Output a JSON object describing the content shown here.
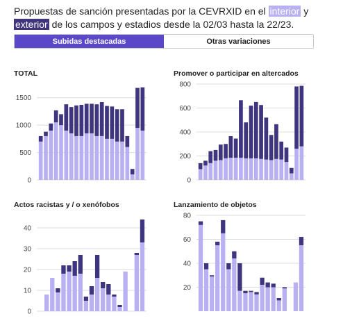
{
  "intro": {
    "part1": "Propuestas de sanción presentadas por la CEVRXID en el ",
    "interior": "interior",
    "part2": " y ",
    "exterior": "exterior",
    "part3": " de los campos y estadios desde la 02/03 hasta la 22/23."
  },
  "tabs": [
    {
      "label": "Subidas destacadas",
      "active": true
    },
    {
      "label": "Otras variaciones",
      "active": false
    }
  ],
  "colors": {
    "interior": "#b9b0f2",
    "exterior": "#3f357f",
    "grid": "#dcdcdc",
    "accent": "#5a48c8"
  },
  "chart_data": [
    {
      "type": "bar",
      "stacked": true,
      "title": "TOTAL",
      "ylim": [
        0,
        1750
      ],
      "yticks": [
        0,
        500,
        1000,
        1500
      ],
      "series": [
        {
          "key": "interior",
          "values": [
            700,
            800,
            900,
            1050,
            1000,
            900,
            850,
            800,
            800,
            850,
            850,
            800,
            800,
            750,
            750,
            700,
            700,
            600,
            100,
            950,
            900
          ]
        },
        {
          "key": "exterior",
          "values": [
            100,
            80,
            130,
            220,
            200,
            480,
            480,
            560,
            570,
            540,
            540,
            580,
            620,
            600,
            590,
            590,
            590,
            200,
            100,
            730,
            790
          ]
        }
      ]
    },
    {
      "type": "bar",
      "stacked": true,
      "title": "Promover o participar en altercados",
      "ylim": [
        0,
        800
      ],
      "yticks": [
        0,
        200,
        400,
        600,
        800
      ],
      "series": [
        {
          "key": "interior",
          "values": [
            90,
            120,
            140,
            160,
            165,
            180,
            185,
            185,
            185,
            180,
            180,
            180,
            175,
            170,
            165,
            175,
            170,
            150,
            55,
            260,
            280
          ]
        },
        {
          "key": "exterior",
          "values": [
            50,
            40,
            100,
            90,
            130,
            120,
            180,
            160,
            480,
            300,
            440,
            470,
            450,
            350,
            210,
            290,
            150,
            120,
            45,
            520,
            505
          ]
        }
      ]
    },
    {
      "type": "bar",
      "stacked": true,
      "title": "Actos racistas y / o xenófobos",
      "ylim": [
        0,
        46
      ],
      "yticks": [
        0,
        10,
        20,
        30,
        40
      ],
      "series": [
        {
          "key": "interior",
          "values": [
            0,
            8,
            16,
            9,
            18,
            19,
            17,
            18,
            5,
            8,
            16,
            11,
            8,
            7,
            2,
            19,
            0,
            27,
            33
          ]
        },
        {
          "key": "exterior",
          "values": [
            0,
            0,
            0,
            2,
            4,
            3,
            7,
            9,
            2,
            4,
            11,
            3,
            5,
            1,
            1,
            0,
            0,
            1,
            11
          ]
        }
      ]
    },
    {
      "type": "bar",
      "stacked": true,
      "title": "Lanzamiento de objetos",
      "ylim": [
        0,
        80
      ],
      "yticks": [
        20,
        40,
        60,
        80
      ],
      "series": [
        {
          "key": "interior",
          "values": [
            72,
            35,
            29,
            55,
            65,
            35,
            44,
            17,
            15,
            16,
            14,
            22,
            20,
            20,
            9,
            19,
            0,
            24,
            55
          ]
        },
        {
          "key": "exterior",
          "values": [
            3,
            5,
            1,
            3,
            11,
            5,
            6,
            23,
            2,
            1,
            2,
            6,
            4,
            3,
            2,
            1,
            0,
            0,
            7
          ]
        }
      ]
    }
  ]
}
